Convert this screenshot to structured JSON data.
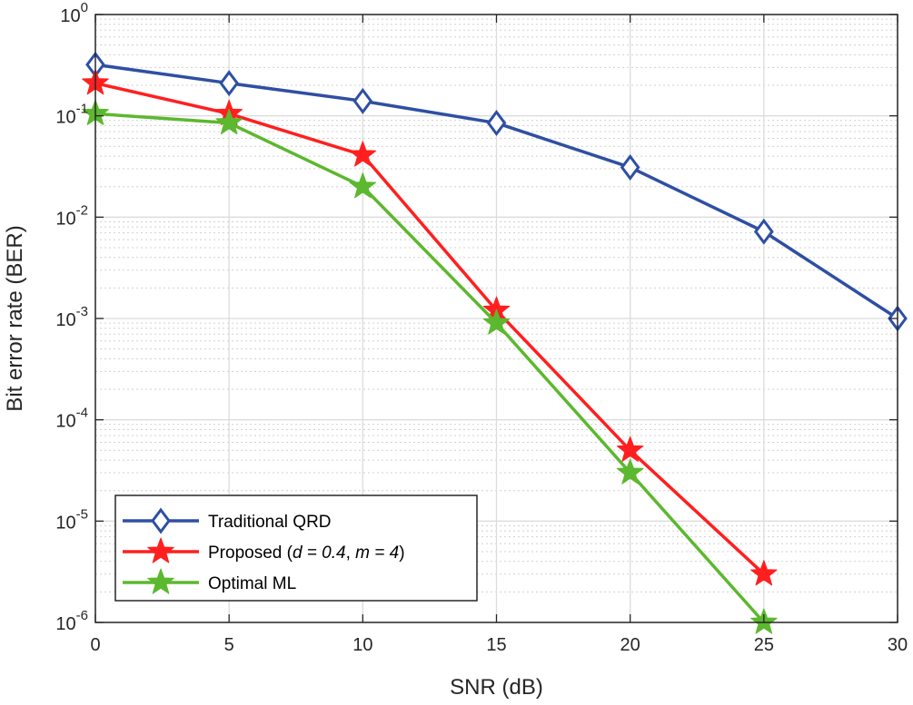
{
  "chart_data": {
    "type": "line",
    "title": "",
    "xlabel": "SNR (dB)",
    "ylabel": "Bit error rate (BER)",
    "xscale": "linear",
    "yscale": "log",
    "xlim": [
      0,
      30
    ],
    "ylim": [
      1e-06,
      1
    ],
    "grid": true,
    "minor_grid": true,
    "legend_position": "bottom-left",
    "x_ticks": [
      0,
      5,
      10,
      15,
      20,
      25,
      30
    ],
    "x_tick_labels": [
      "0",
      "5",
      "10",
      "15",
      "20",
      "25",
      "30"
    ],
    "y_ticks": [
      {
        "value": 1,
        "base": "10",
        "exp": "0"
      },
      {
        "value": 0.1,
        "base": "10",
        "exp": "-1"
      },
      {
        "value": 0.01,
        "base": "10",
        "exp": "-2"
      },
      {
        "value": 0.001,
        "base": "10",
        "exp": "-3"
      },
      {
        "value": 0.0001,
        "base": "10",
        "exp": "-4"
      },
      {
        "value": 1e-05,
        "base": "10",
        "exp": "-5"
      },
      {
        "value": 1e-06,
        "base": "10",
        "exp": "-6"
      }
    ],
    "series": [
      {
        "name": "Traditional QRD",
        "legend_parts": [
          {
            "text": "Traditional QRD",
            "italic": false
          }
        ],
        "color": "#2e4fa3",
        "marker": "diamond",
        "x": [
          0,
          5,
          10,
          15,
          20,
          25,
          30
        ],
        "y": [
          0.32,
          0.21,
          0.14,
          0.085,
          0.031,
          0.0072,
          0.001
        ]
      },
      {
        "name": "Proposed (d = 0.4, m = 4)",
        "legend_parts": [
          {
            "text": "Proposed (",
            "italic": false
          },
          {
            "text": "d = 0.4",
            "italic": true
          },
          {
            "text": ", ",
            "italic": false
          },
          {
            "text": "m = 4",
            "italic": true
          },
          {
            "text": ")",
            "italic": false
          }
        ],
        "color": "#ff1f1f",
        "marker": "star",
        "x": [
          0,
          5,
          10,
          15,
          20,
          25
        ],
        "y": [
          0.21,
          0.105,
          0.041,
          0.0012,
          5e-05,
          3e-06
        ]
      },
      {
        "name": "Optimal ML",
        "legend_parts": [
          {
            "text": "Optimal ML",
            "italic": false
          }
        ],
        "color": "#5cb82e",
        "marker": "star",
        "x": [
          0,
          5,
          10,
          15,
          20,
          25
        ],
        "y": [
          0.105,
          0.085,
          0.02,
          0.0009,
          3e-05,
          1e-06
        ]
      }
    ]
  }
}
